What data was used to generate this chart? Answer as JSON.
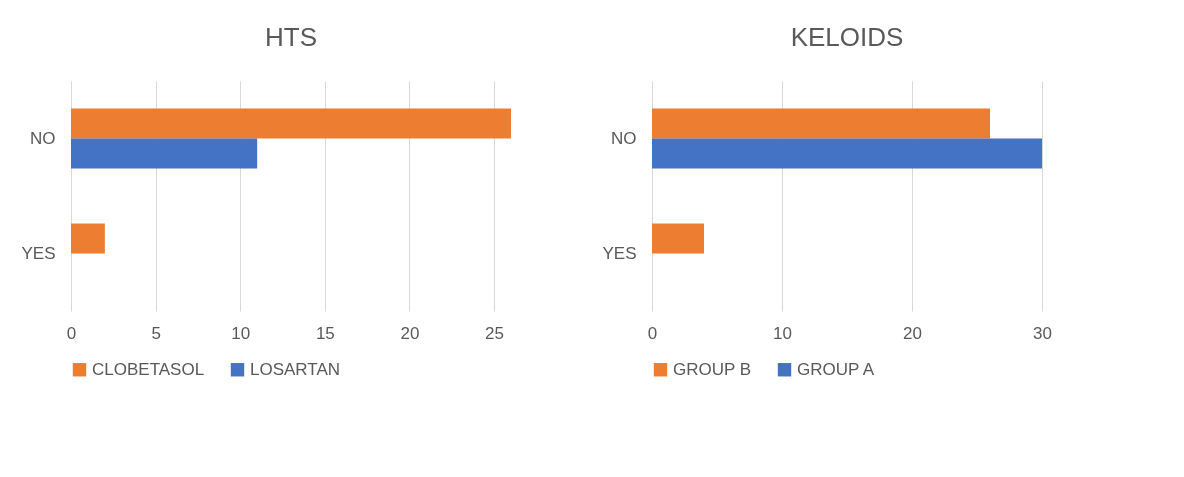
{
  "chart_data": [
    {
      "type": "bar",
      "orientation": "horizontal",
      "title": "HTS",
      "categories": [
        "NO",
        "YES"
      ],
      "series": [
        {
          "name": "CLOBETASOL",
          "color": "#ed7d31",
          "values": [
            26,
            2
          ]
        },
        {
          "name": "LOSARTAN",
          "color": "#4472c4",
          "values": [
            11,
            0
          ]
        }
      ],
      "xlim": [
        0,
        26
      ],
      "xticks": [
        0,
        5,
        10,
        15,
        20,
        25
      ],
      "grid": "x",
      "legend": "bottom"
    },
    {
      "type": "bar",
      "orientation": "horizontal",
      "title": "KELOIDS",
      "categories": [
        "NO",
        "YES"
      ],
      "series": [
        {
          "name": "GROUP B",
          "color": "#ed7d31",
          "values": [
            26,
            4
          ]
        },
        {
          "name": "GROUP A",
          "color": "#4472c4",
          "values": [
            30,
            0
          ]
        }
      ],
      "xlim": [
        0,
        30
      ],
      "xticks": [
        0,
        10,
        20,
        30
      ],
      "grid": "x",
      "legend": "bottom"
    }
  ]
}
